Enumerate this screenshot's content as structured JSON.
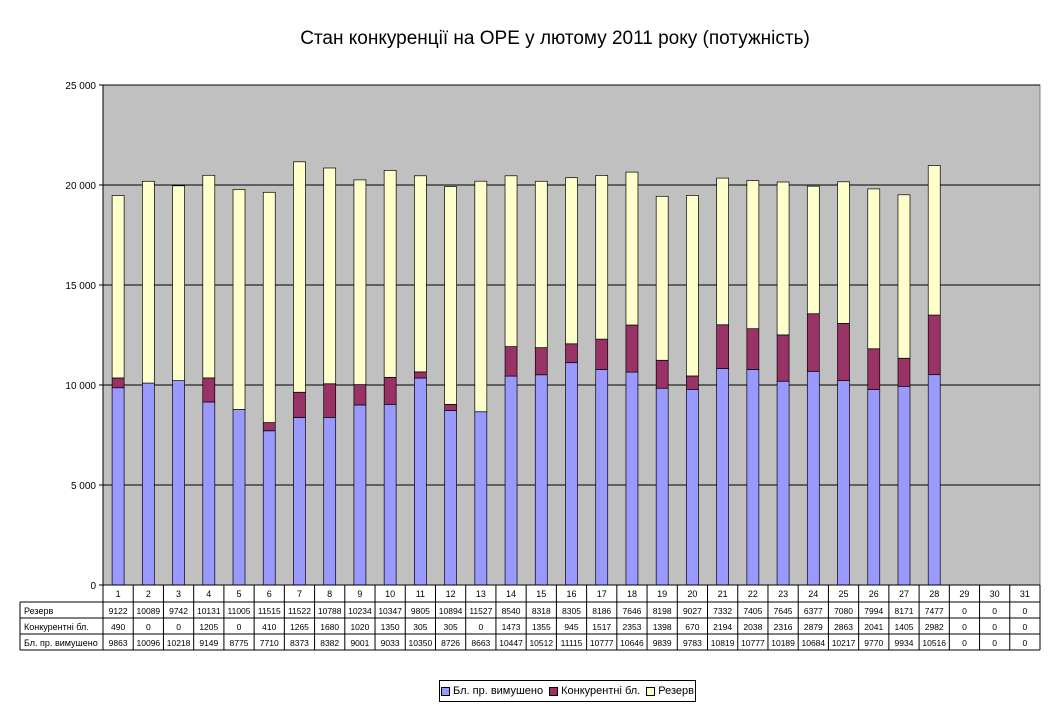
{
  "chart_data": {
    "type": "bar",
    "stacked": true,
    "title": "Стан конкуренції на ОРЕ  у лютому 2011 року (потужність)",
    "xlabel": "",
    "ylabel": "",
    "ylim": [
      0,
      25000
    ],
    "yticks": [
      "0",
      "5 000",
      "10 000",
      "15 000",
      "20 000",
      "25 000"
    ],
    "ytick_values": [
      0,
      5000,
      10000,
      15000,
      20000,
      25000
    ],
    "grid": true,
    "plot_background": "#c0c0c0",
    "legend_position": "bottom",
    "categories": [
      "1",
      "2",
      "3",
      "4",
      "5",
      "6",
      "7",
      "8",
      "9",
      "10",
      "11",
      "12",
      "13",
      "14",
      "15",
      "16",
      "17",
      "18",
      "19",
      "20",
      "21",
      "22",
      "23",
      "24",
      "25",
      "26",
      "27",
      "28",
      "29",
      "30",
      "31"
    ],
    "series": [
      {
        "name": "Бл. пр. вимушено",
        "color": "#9999ff",
        "values": [
          9863,
          10096,
          10218,
          9149,
          8775,
          7710,
          8373,
          8382,
          9001,
          9033,
          10350,
          8726,
          8663,
          10447,
          10512,
          11115,
          10777,
          10646,
          9839,
          9783,
          10819,
          10777,
          10189,
          10684,
          10217,
          9770,
          9934,
          10516,
          0,
          0,
          0
        ]
      },
      {
        "name": "Конкурентні бл.",
        "color": "#993366",
        "values": [
          490,
          0,
          0,
          1205,
          0,
          410,
          1265,
          1680,
          1020,
          1350,
          305,
          305,
          0,
          1473,
          1355,
          945,
          1517,
          2353,
          1398,
          670,
          2194,
          2038,
          2316,
          2879,
          2863,
          2041,
          1405,
          2982,
          0,
          0,
          0
        ]
      },
      {
        "name": "Резерв",
        "color": "#ffffcc",
        "values": [
          9122,
          10089,
          9742,
          10131,
          11005,
          11515,
          11522,
          10788,
          10234,
          10347,
          9805,
          10894,
          11527,
          8540,
          8318,
          8305,
          8186,
          7646,
          8198,
          9027,
          7332,
          7405,
          7645,
          6377,
          7080,
          7994,
          8171,
          7477,
          0,
          0,
          0
        ]
      }
    ],
    "table": {
      "row_labels": [
        "Резерв",
        "Конкурентні бл.",
        "Бл. пр. вимушено"
      ],
      "row_series": [
        2,
        1,
        0
      ]
    }
  }
}
